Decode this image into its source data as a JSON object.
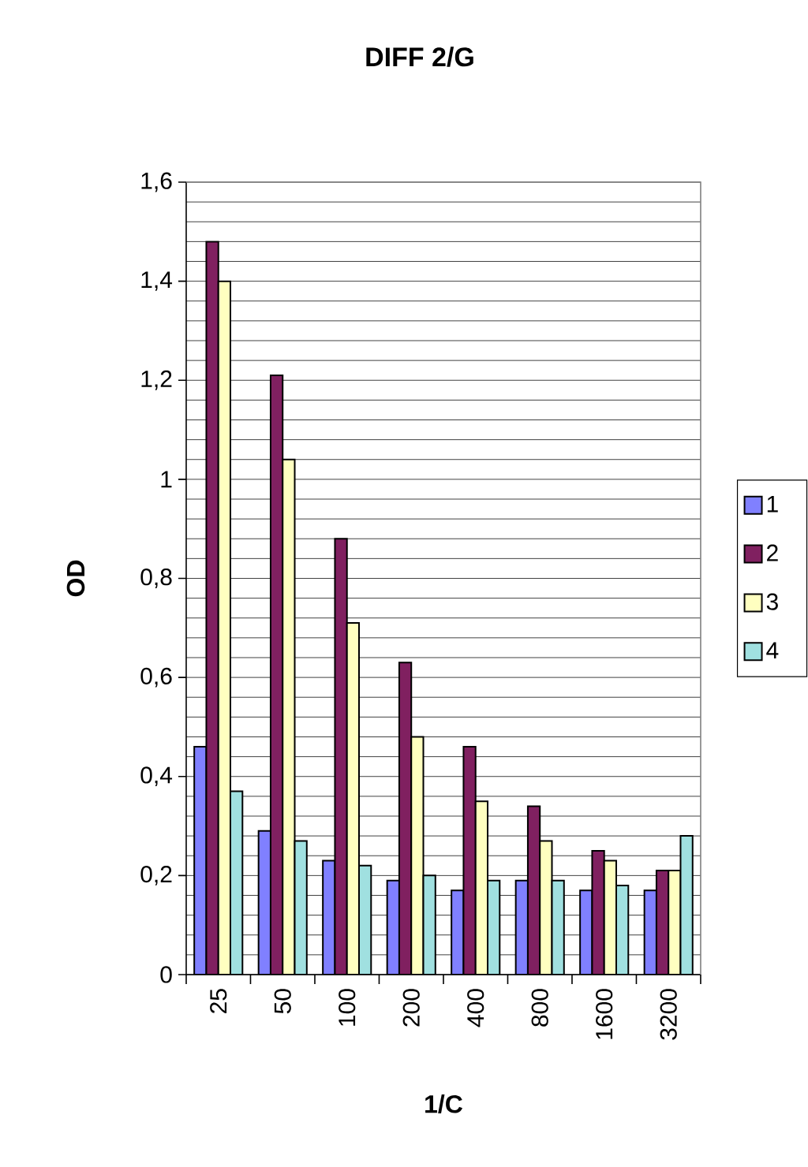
{
  "chart_data": {
    "type": "bar",
    "title": "DIFF 2/G",
    "xlabel": "1/C",
    "ylabel": "OD",
    "categories": [
      "25",
      "50",
      "100",
      "200",
      "400",
      "800",
      "1600",
      "3200"
    ],
    "series": [
      {
        "name": "1",
        "color": "#8080ff",
        "values": [
          0.46,
          0.29,
          0.23,
          0.19,
          0.17,
          0.19,
          0.17,
          0.17
        ]
      },
      {
        "name": "2",
        "color": "#802060",
        "values": [
          1.48,
          1.21,
          0.88,
          0.63,
          0.46,
          0.34,
          0.25,
          0.21
        ]
      },
      {
        "name": "3",
        "color": "#ffffc0",
        "values": [
          1.4,
          1.04,
          0.71,
          0.48,
          0.35,
          0.27,
          0.23,
          0.21
        ]
      },
      {
        "name": "4",
        "color": "#a0e0e0",
        "values": [
          0.37,
          0.27,
          0.22,
          0.2,
          0.19,
          0.19,
          0.18,
          0.28
        ]
      }
    ],
    "ylim": [
      0,
      1.6
    ],
    "yticks": [
      0,
      {
        "value": 0.2,
        "label": "0,2"
      },
      {
        "value": 0.4,
        "label": "0,4"
      },
      {
        "value": 0.6,
        "label": "0,6"
      },
      {
        "value": 0.8,
        "label": "0,8"
      },
      1,
      {
        "value": 1.2,
        "label": "1,2"
      },
      {
        "value": 1.4,
        "label": "1,4"
      },
      {
        "value": 1.6,
        "label": "1,6"
      }
    ],
    "grid": "y",
    "legend": "right"
  }
}
